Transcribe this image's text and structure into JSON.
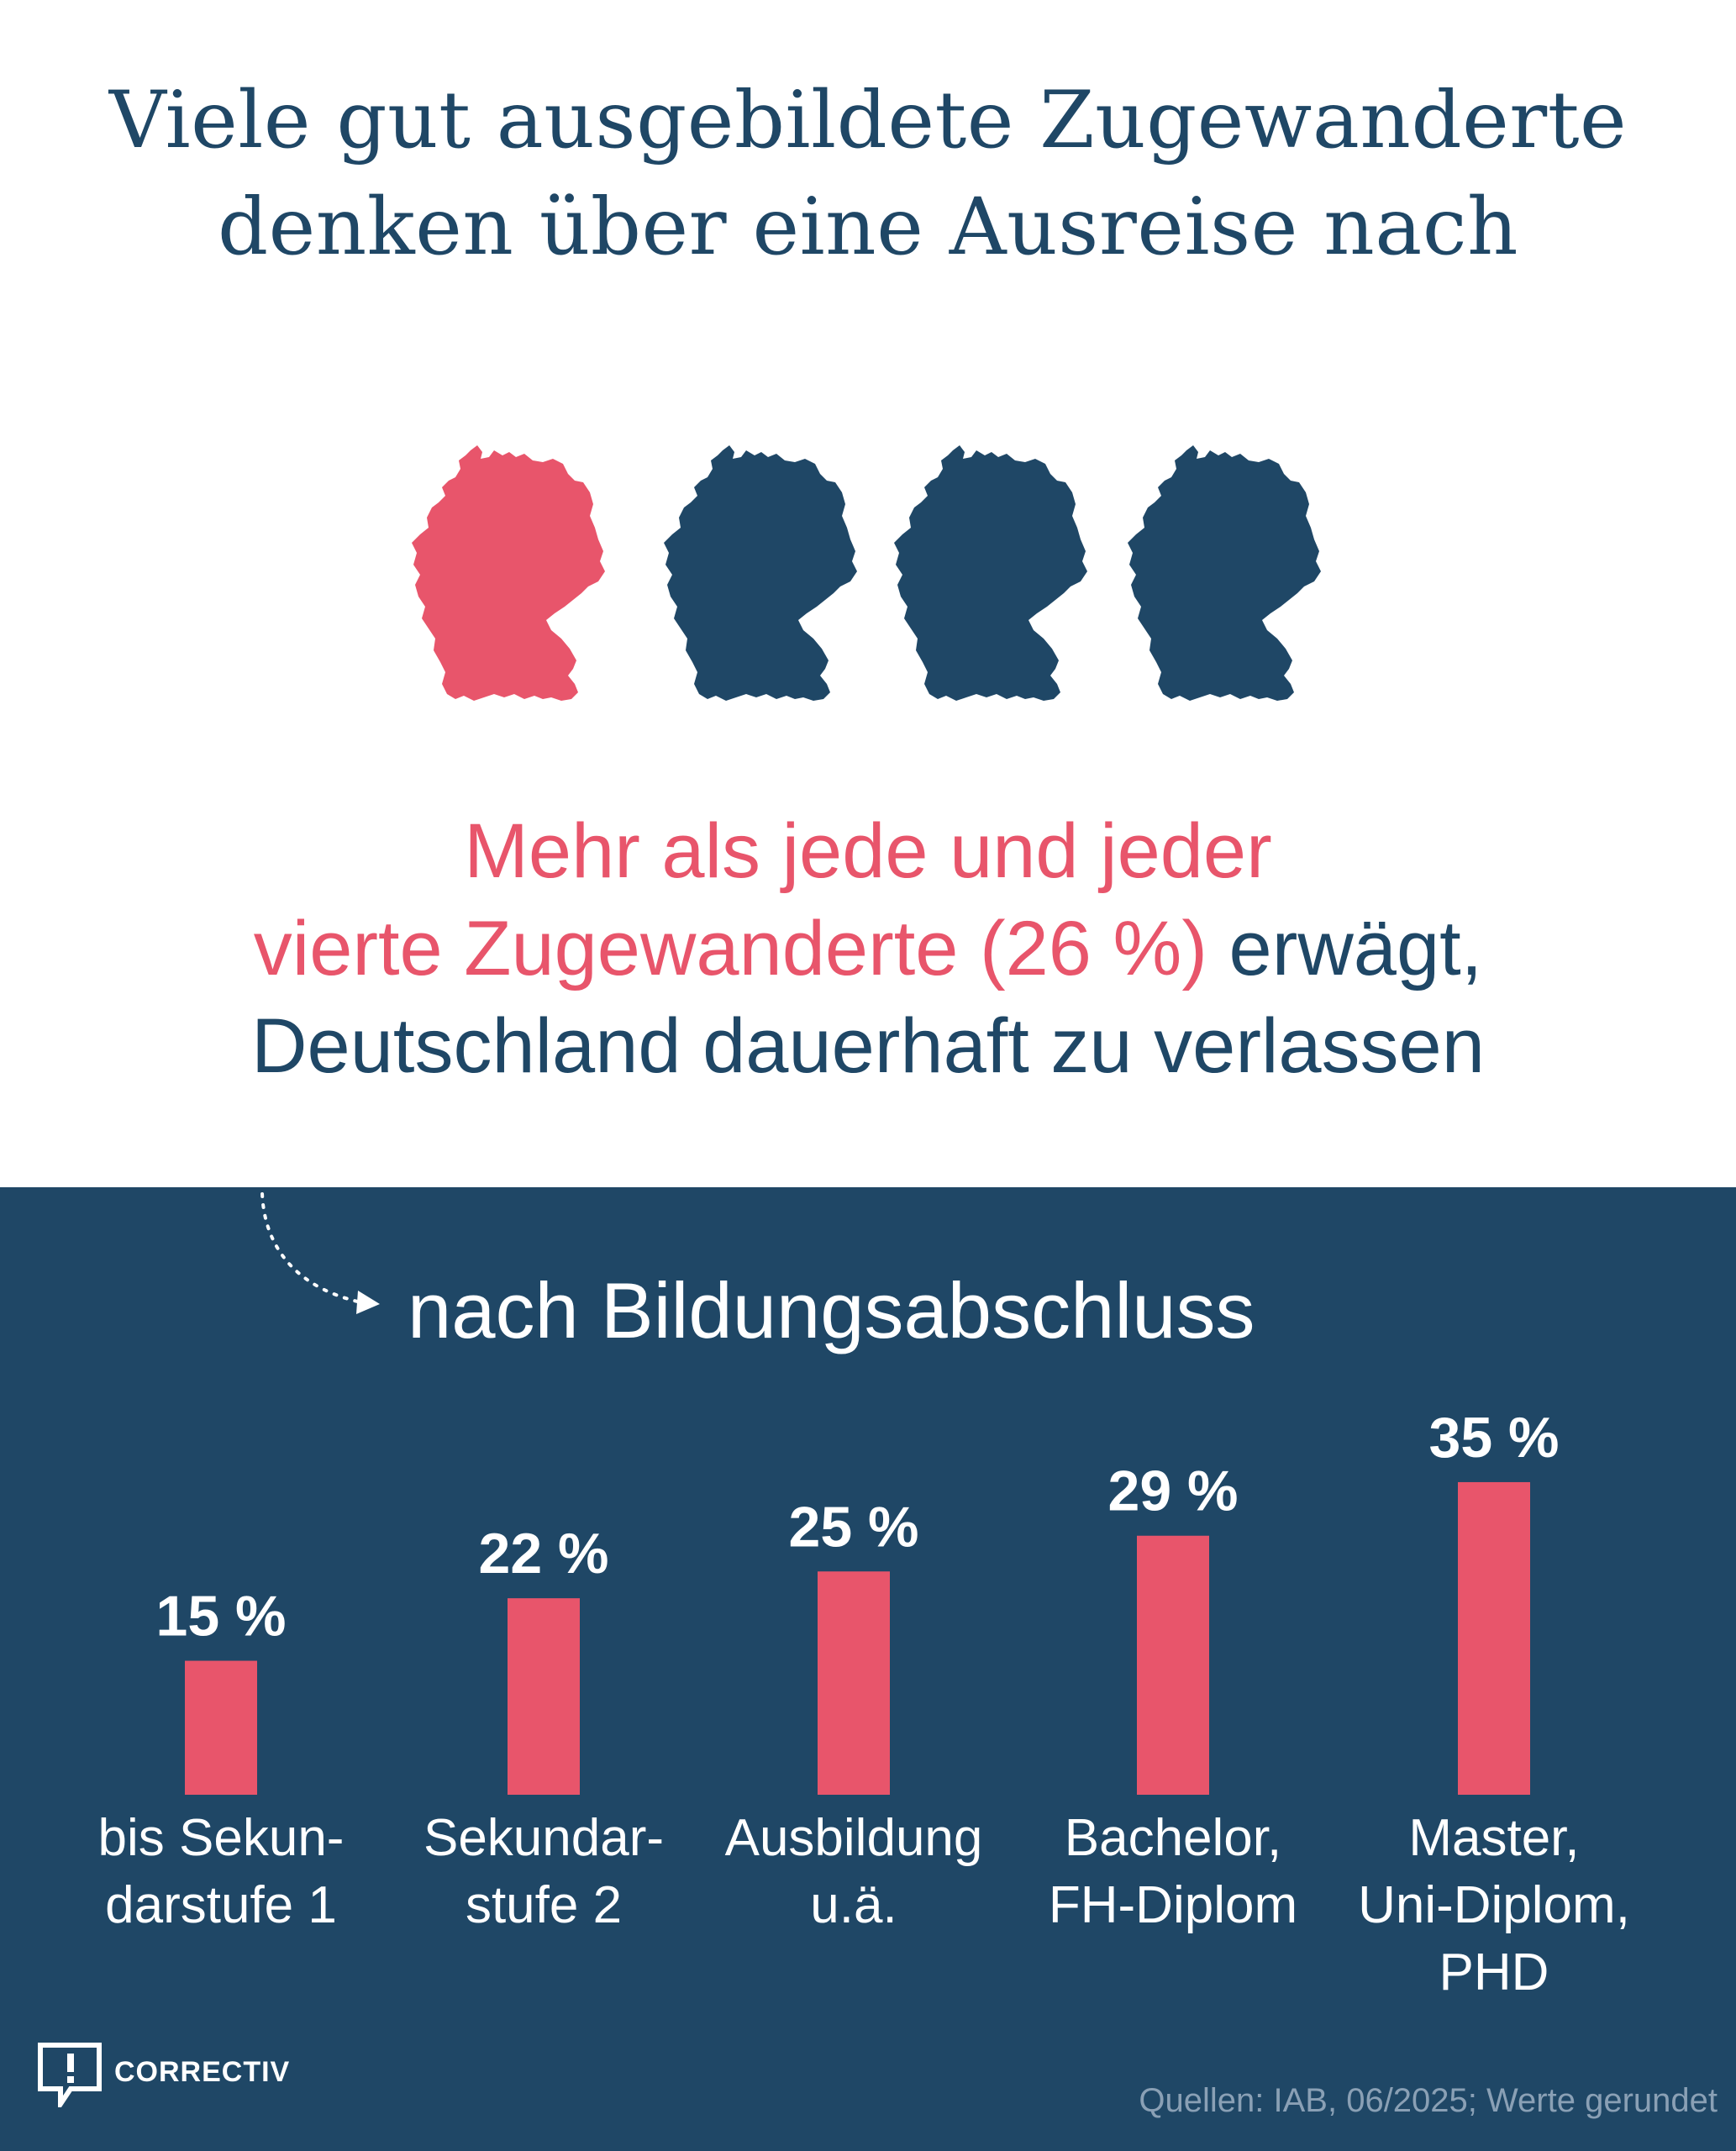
{
  "title": {
    "line1": "Viele gut ausgebildete Zugewanderte",
    "line2": "denken über eine Ausreise nach"
  },
  "maps": {
    "icon": "germany-map-icon",
    "count": 4,
    "highlighted": 1,
    "highlight_color": "#e8556b",
    "base_color": "#1f4766"
  },
  "headline": {
    "line1": "Mehr als jede und jeder",
    "line2_accent": "vierte Zugewanderte (26 %)",
    "line2_rest": " erwägt,",
    "line3": "Deutschland dauerhaft zu verlassen"
  },
  "section": {
    "subtitle": "nach Bildungsabschluss",
    "arrow_icon": "dotted-arrow-icon"
  },
  "chart_data": {
    "type": "bar",
    "title": "nach Bildungsabschluss",
    "unit": "%",
    "categories": [
      "bis Sekundarstufe 1",
      "Sekundarstufe 2",
      "Ausbildung u.ä.",
      "Bachelor, FH-Diplom",
      "Master, Uni-Diplom, PHD"
    ],
    "category_lines": [
      [
        "bis Sekun-",
        "darstufe 1"
      ],
      [
        "Sekundar-",
        "stufe 2"
      ],
      [
        "Ausbildung",
        "u.ä."
      ],
      [
        "Bachelor,",
        "FH-Diplom"
      ],
      [
        "Master,",
        "Uni-Diplom,",
        "PHD"
      ]
    ],
    "values": [
      15,
      22,
      25,
      29,
      35
    ],
    "data_labels": [
      "15 %",
      "22 %",
      "25 %",
      "29 %",
      "35 %"
    ],
    "ylim": [
      0,
      35
    ],
    "grid": false,
    "bar_color": "#e8556b",
    "background_color": "#1f4766"
  },
  "footer": {
    "logo_text": "CORRECTIV",
    "logo_icon": "correctiv-logo-icon",
    "source": "Quellen: IAB, 06/2025; Werte gerundet"
  }
}
